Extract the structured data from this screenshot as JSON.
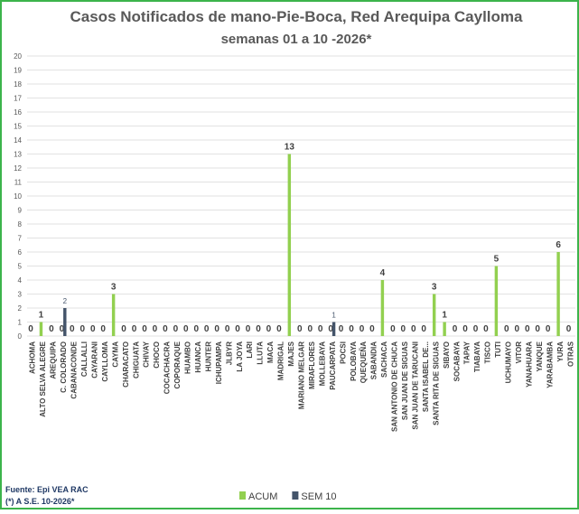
{
  "chart_data": {
    "type": "bar",
    "title": "Casos Notificados de mano-Pie-Boca, Red Arequipa Caylloma",
    "subtitle": "semanas 01 a 10 -2026*",
    "categories": [
      "ACHOMA",
      "ALTO SELVA ALEGRE",
      "AREQUIPA",
      "C. COLORADO",
      "CABANACONDE",
      "CALLALLI",
      "CAYARANI",
      "CAYLLOMA",
      "CAYMA",
      "CHARACATO",
      "CHIGUATA",
      "CHIVAY",
      "CHOCO",
      "COCACHACRA",
      "COPORAQUE",
      "HUAMBO",
      "HUANCA",
      "HUNTER",
      "ICHUPAMPA",
      "JLBYR",
      "LA JOYA",
      "LARI",
      "LLUTA",
      "MACA",
      "MADRIGAL",
      "MAJES",
      "MARIANO MELGAR",
      "MIRAFLORES",
      "MOLLEBAYA",
      "PAUCARPATA",
      "POCSI",
      "POLOBAYA",
      "QUEQUEÑA",
      "SABANDIA",
      "SACHACA",
      "SAN ANTONIO DE CHUCA",
      "SAN JUAN DE SIGUAS",
      "SAN JUAN DE TARUCANI",
      "SANTA ISABEL DE...",
      "SANTA RITA DE SIGUAS",
      "SIBAYO",
      "SOCABAYA",
      "TAPAY",
      "TIABAYA",
      "TISCO",
      "TUTI",
      "UCHUMAYO",
      "VITOR",
      "YANAHUARA",
      "YANQUE",
      "YARABAMBA",
      "YURA",
      "OTRAS"
    ],
    "series": [
      {
        "name": "ACUM",
        "color": "#92d050",
        "values": [
          0,
          1,
          0,
          0,
          0,
          0,
          0,
          0,
          3,
          0,
          0,
          0,
          0,
          0,
          0,
          0,
          0,
          0,
          0,
          0,
          0,
          0,
          0,
          0,
          0,
          13,
          0,
          0,
          0,
          0,
          0,
          0,
          0,
          0,
          4,
          0,
          0,
          0,
          0,
          3,
          1,
          0,
          0,
          0,
          0,
          5,
          0,
          0,
          0,
          0,
          0,
          6,
          0
        ]
      },
      {
        "name": "SEM 10",
        "color": "#44546a",
        "values": [
          0,
          0,
          0,
          2,
          0,
          0,
          0,
          0,
          0,
          0,
          0,
          0,
          0,
          0,
          0,
          0,
          0,
          0,
          0,
          0,
          0,
          0,
          0,
          0,
          0,
          0,
          0,
          0,
          0,
          1,
          0,
          0,
          0,
          0,
          0,
          0,
          0,
          0,
          0,
          0,
          0,
          0,
          0,
          0,
          0,
          0,
          0,
          0,
          0,
          0,
          0,
          0,
          0
        ]
      }
    ],
    "ylim": [
      0,
      20
    ],
    "yticks": [
      0,
      1,
      2,
      3,
      4,
      5,
      6,
      7,
      8,
      9,
      10,
      11,
      12,
      13,
      14,
      15,
      16,
      17,
      18,
      19,
      20
    ],
    "grid": true,
    "legend": "bottom",
    "source": "Fuente: Epi VEA RAC",
    "note": "(*) A S.E. 10-2026*"
  }
}
